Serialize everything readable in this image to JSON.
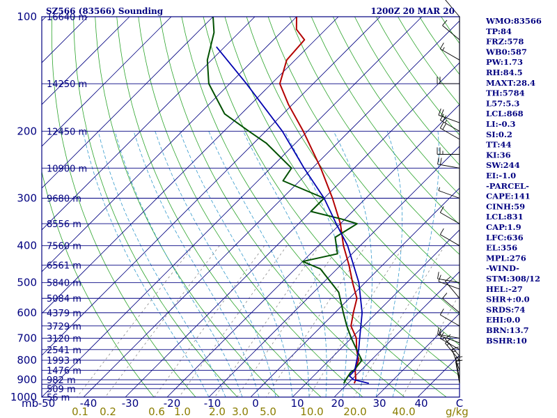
{
  "header": {
    "station": "SZ566 (83566) Sounding",
    "time": "1200Z 20 MAR 20"
  },
  "axis": {
    "corner_unit": "mb",
    "mixing_ratio_unit": "g/kg",
    "pressure_labels": [
      "100",
      "200",
      "300",
      "400",
      "500",
      "600",
      "700",
      "800",
      "900",
      "1000"
    ],
    "temperature_labels": [
      "-50",
      "-40",
      "-30",
      "-20",
      "-10",
      "0",
      "10",
      "20",
      "30",
      "40",
      "C"
    ],
    "mixing_ratio_labels": [
      "0.1",
      "0.2",
      "0.6",
      "1.0",
      "2.0",
      "3.0",
      "5.0",
      "10.0",
      "20.0",
      "40.0"
    ],
    "height_labels": [
      "16640 m",
      "14250 m",
      "12450 m",
      "10900 m",
      "9680 m",
      "8556 m",
      "7560 m",
      "6561 m",
      "5840 m",
      "5084 m",
      "4379 m",
      "3729 m",
      "3120 m",
      "2541 m",
      "1993 m",
      "1476 m",
      "982 m",
      "509 m",
      "56 m"
    ]
  },
  "indices": [
    "WMO:83566",
    "TP:84",
    "FRZ:578",
    "WB0:587",
    "PW:1.73",
    "RH:84.5",
    "MAXT:28.4",
    "TH:5784",
    "L57:5.3",
    "LCL:868",
    "LI:-0.3",
    "SI:0.2",
    "TT:44",
    "KI:36",
    "SW:244",
    "EI:-1.0",
    "-PARCEL-",
    "CAPE:141",
    "CINH:59",
    "LCL:831",
    "CAP:1.9",
    "LFC:636",
    "EL:356",
    "MPL:276",
    "-WIND-",
    "STM:308/12",
    "HEL:-27",
    "SHR+:0.0",
    "SRDS:74",
    "EHI:0.0",
    "BRN:13.7",
    "BSHR:10"
  ],
  "colors": {
    "axis": "#000080",
    "isobar": "#000080",
    "isotherm": "#000080",
    "dry_adiabat": "#2aa32a",
    "moist_adiabat": "#3399cc",
    "mixing_ratio": "#7a7a7a",
    "temperature": "#b30000",
    "dewpoint": "#005000",
    "parcel": "#0000b0",
    "wind_barb": "#000000",
    "mixing_label": "#8b7d00"
  },
  "chart_data": {
    "type": "line",
    "diagram": "skew-T log-P",
    "title": "SZ566 (83566) Sounding",
    "subtitle": "1200Z 20 MAR 20",
    "xlabel": "C",
    "ylabel": "mb",
    "xlim": [
      -50,
      50
    ],
    "ylim": [
      1000,
      100
    ],
    "y_scale": "log",
    "isobars_mb": [
      100,
      150,
      200,
      250,
      300,
      350,
      400,
      450,
      500,
      550,
      600,
      650,
      700,
      750,
      800,
      850,
      900,
      925,
      950,
      1000
    ],
    "series": [
      {
        "key": "temperature",
        "points": [
          {
            "p": 920,
            "t": 21.5
          },
          {
            "p": 900,
            "t": 21.0
          },
          {
            "p": 850,
            "t": 18.6
          },
          {
            "p": 800,
            "t": 17.0
          },
          {
            "p": 750,
            "t": 14.0
          },
          {
            "p": 700,
            "t": 11.2
          },
          {
            "p": 650,
            "t": 7.0
          },
          {
            "p": 600,
            "t": 4.4
          },
          {
            "p": 550,
            "t": 1.8
          },
          {
            "p": 500,
            "t": -3.0
          },
          {
            "p": 450,
            "t": -8.0
          },
          {
            "p": 400,
            "t": -14.0
          },
          {
            "p": 350,
            "t": -20.0
          },
          {
            "p": 300,
            "t": -28.0
          },
          {
            "p": 250,
            "t": -38.0
          },
          {
            "p": 200,
            "t": -51.0
          },
          {
            "p": 170,
            "t": -61.0
          },
          {
            "p": 150,
            "t": -68.0
          },
          {
            "p": 130,
            "t": -72.0
          },
          {
            "p": 115,
            "t": -72.6
          },
          {
            "p": 108,
            "t": -77.0
          },
          {
            "p": 100,
            "t": -80.0
          }
        ]
      },
      {
        "key": "dewpoint",
        "points": [
          {
            "p": 920,
            "t": 19.0
          },
          {
            "p": 900,
            "t": 18.6
          },
          {
            "p": 860,
            "t": 18.0
          },
          {
            "p": 850,
            "t": 18.3
          },
          {
            "p": 800,
            "t": 17.8
          },
          {
            "p": 750,
            "t": 14.0
          },
          {
            "p": 700,
            "t": 10.0
          },
          {
            "p": 650,
            "t": 6.0
          },
          {
            "p": 600,
            "t": 2.0
          },
          {
            "p": 530,
            "t": -4.0
          },
          {
            "p": 460,
            "t": -14.0
          },
          {
            "p": 440,
            "t": -20.0
          },
          {
            "p": 420,
            "t": -13.5
          },
          {
            "p": 380,
            "t": -18.0
          },
          {
            "p": 350,
            "t": -16.0
          },
          {
            "p": 340,
            "t": -21.0
          },
          {
            "p": 325,
            "t": -30.0
          },
          {
            "p": 300,
            "t": -30.0
          },
          {
            "p": 270,
            "t": -44.0
          },
          {
            "p": 250,
            "t": -45.0
          },
          {
            "p": 215,
            "t": -57.0
          },
          {
            "p": 200,
            "t": -64.0
          },
          {
            "p": 180,
            "t": -74.0
          },
          {
            "p": 150,
            "t": -85.0
          },
          {
            "p": 130,
            "t": -91.0
          },
          {
            "p": 110,
            "t": -96.0
          },
          {
            "p": 100,
            "t": -100.0
          }
        ]
      },
      {
        "key": "parcel",
        "points": [
          {
            "p": 920,
            "t": 25.0
          },
          {
            "p": 900,
            "t": 20.5
          },
          {
            "p": 880,
            "t": 18.6
          },
          {
            "p": 850,
            "t": 18.5
          },
          {
            "p": 800,
            "t": 16.6
          },
          {
            "p": 750,
            "t": 14.5
          },
          {
            "p": 700,
            "t": 12.0
          },
          {
            "p": 600,
            "t": 6.5
          },
          {
            "p": 500,
            "t": -1.5
          },
          {
            "p": 400,
            "t": -13.0
          },
          {
            "p": 350,
            "t": -21.0
          },
          {
            "p": 300,
            "t": -30.0
          },
          {
            "p": 250,
            "t": -42.0
          },
          {
            "p": 200,
            "t": -56.0
          },
          {
            "p": 150,
            "t": -76.0
          },
          {
            "p": 120,
            "t": -92.0
          }
        ]
      }
    ],
    "wind_barbs": [
      {
        "p": 920,
        "dir": 350,
        "spd": 15
      },
      {
        "p": 900,
        "dir": 350,
        "spd": 15
      },
      {
        "p": 850,
        "dir": 340,
        "spd": 15
      },
      {
        "p": 800,
        "dir": 320,
        "spd": 15
      },
      {
        "p": 780,
        "dir": 320,
        "spd": 10
      },
      {
        "p": 750,
        "dir": 300,
        "spd": 15
      },
      {
        "p": 720,
        "dir": 290,
        "spd": 10
      },
      {
        "p": 700,
        "dir": 280,
        "spd": 15
      },
      {
        "p": 650,
        "dir": 300,
        "spd": 10
      },
      {
        "p": 600,
        "dir": 310,
        "spd": 10
      },
      {
        "p": 550,
        "dir": 320,
        "spd": 10
      },
      {
        "p": 520,
        "dir": 290,
        "spd": 10
      },
      {
        "p": 500,
        "dir": 280,
        "spd": 10
      },
      {
        "p": 400,
        "dir": 300,
        "spd": 10
      },
      {
        "p": 350,
        "dir": 300,
        "spd": 10
      },
      {
        "p": 300,
        "dir": 290,
        "spd": 5
      },
      {
        "p": 250,
        "dir": 280,
        "spd": 20
      },
      {
        "p": 230,
        "dir": 270,
        "spd": 25
      },
      {
        "p": 210,
        "dir": 300,
        "spd": 20
      },
      {
        "p": 200,
        "dir": 300,
        "spd": 25
      },
      {
        "p": 190,
        "dir": 290,
        "spd": 20
      },
      {
        "p": 150,
        "dir": 270,
        "spd": 20
      },
      {
        "p": 130,
        "dir": 300,
        "spd": 15
      },
      {
        "p": 115,
        "dir": 310,
        "spd": 10
      },
      {
        "p": 100,
        "dir": 320,
        "spd": 10
      }
    ]
  }
}
